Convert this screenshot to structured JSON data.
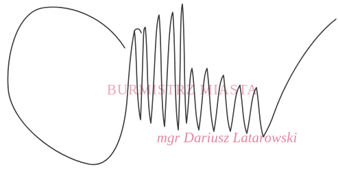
{
  "stamp": {
    "title": "BURMISTRZ MIASTA",
    "name": "mgr Dariusz Latarowski"
  }
}
